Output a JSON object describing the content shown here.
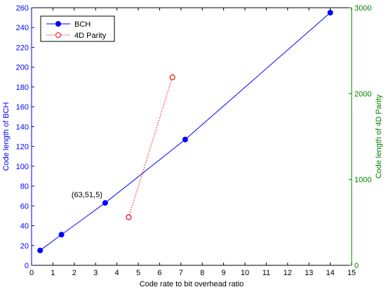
{
  "chart_data": {
    "type": "line",
    "xlabel": "Code rate to bit overhead ratio",
    "ylabel_left": "Code length of BCH",
    "ylabel_right": "Code length of 4D Parity",
    "xlim": [
      0,
      15
    ],
    "ylim_left": [
      0,
      260
    ],
    "ylim_right": [
      0,
      3000
    ],
    "x_ticks": [
      0,
      1,
      2,
      3,
      4,
      5,
      6,
      7,
      8,
      9,
      10,
      11,
      12,
      13,
      14,
      15
    ],
    "y_ticks_left": [
      0,
      20,
      40,
      60,
      80,
      100,
      120,
      140,
      160,
      180,
      200,
      220,
      240,
      260
    ],
    "y_ticks_right": [
      0,
      1000,
      2000,
      3000
    ],
    "grid": false,
    "legend_position": "top-left",
    "axis_colors": {
      "left": "#0000ff",
      "right": "#008000"
    },
    "series": [
      {
        "name": "BCH",
        "axis": "left",
        "color": "#0000ff",
        "style": "solid",
        "marker": "filled-circle",
        "x": [
          0.4,
          1.4,
          3.45,
          7.2,
          14.0
        ],
        "y": [
          15,
          31,
          63,
          127,
          255
        ]
      },
      {
        "name": "4D Parity",
        "axis": "right",
        "color": "#ff0000",
        "style": "dotted",
        "marker": "open-circle",
        "x": [
          4.55,
          6.6
        ],
        "y": [
          560,
          2190
        ]
      }
    ],
    "annotations": [
      {
        "text": "(63,51,5)",
        "x": 3.45,
        "y": 63
      }
    ]
  }
}
